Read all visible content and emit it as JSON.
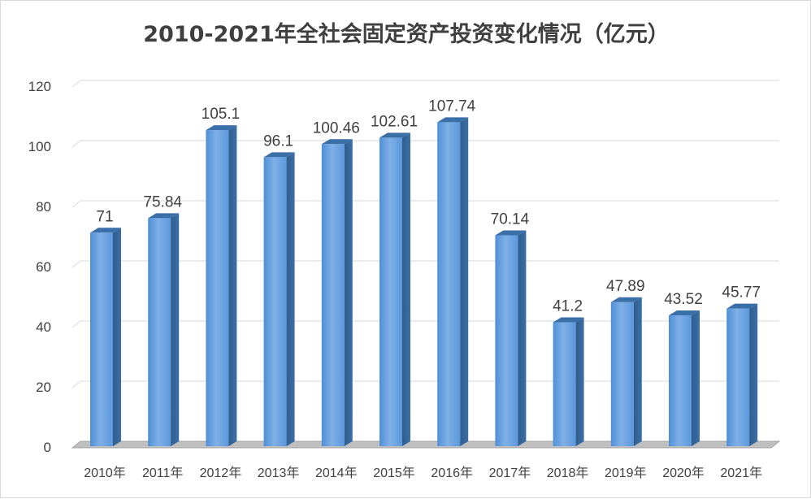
{
  "chart_data": {
    "type": "bar",
    "title": "2010-2021年全社会固定资产投资变化情况（亿元）",
    "xlabel": "",
    "ylabel": "",
    "categories": [
      "2010年",
      "2011年",
      "2012年",
      "2013年",
      "2014年",
      "2015年",
      "2016年",
      "2017年",
      "2018年",
      "2019年",
      "2020年",
      "2021年"
    ],
    "values": [
      71,
      75.84,
      105.1,
      96.1,
      100.46,
      102.61,
      107.74,
      70.14,
      41.2,
      47.89,
      43.52,
      45.77
    ],
    "data_labels": [
      "71",
      "75.84",
      "105.1",
      "96.1",
      "100.46",
      "102.61",
      "107.74",
      "70.14",
      "41.2",
      "47.89",
      "43.52",
      "45.77"
    ],
    "ylim": [
      0,
      120
    ],
    "yticks": [
      0,
      20,
      40,
      60,
      80,
      100,
      120
    ],
    "grid": true,
    "legend": "none",
    "bar_color": "#5b9bd5",
    "style": "3d-column"
  }
}
